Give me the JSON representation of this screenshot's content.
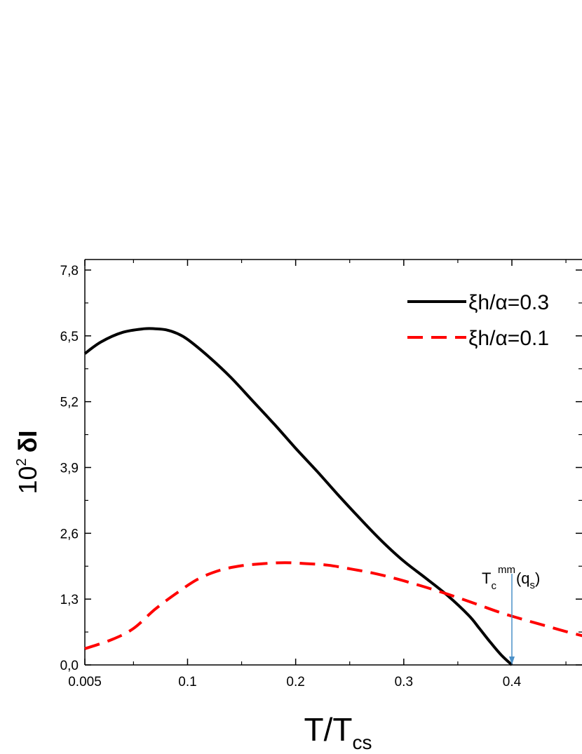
{
  "chart_data": {
    "type": "line",
    "xlabel": {
      "main": "T/T",
      "sub": "cs"
    },
    "ylabel": {
      "main": "10",
      "sup": "2",
      "symbol": "δI"
    },
    "xlim": [
      0.005,
      0.47
    ],
    "ylim": [
      0,
      7.8
    ],
    "x_ticks": [
      0.005,
      0.1,
      0.2,
      0.3,
      0.4
    ],
    "x_tick_labels": [
      "0.005",
      "0.1",
      "0.2",
      "0.3",
      "0.4"
    ],
    "y_ticks": [
      0,
      1.3,
      2.6,
      3.9,
      5.2,
      6.5,
      7.8
    ],
    "y_tick_labels": [
      "0,0",
      "1,3",
      "2,6",
      "3,9",
      "5,2",
      "6,5",
      "7,8"
    ],
    "grid": false,
    "legend_position": "top-right",
    "series": [
      {
        "name": "ξh/α=0.3",
        "color": "#000000",
        "dash": "solid",
        "x": [
          0.005,
          0.02,
          0.04,
          0.06,
          0.07,
          0.08,
          0.09,
          0.1,
          0.12,
          0.14,
          0.16,
          0.18,
          0.2,
          0.22,
          0.24,
          0.26,
          0.28,
          0.3,
          0.32,
          0.34,
          0.36,
          0.37,
          0.38,
          0.39,
          0.4
        ],
        "y": [
          6.15,
          6.38,
          6.57,
          6.64,
          6.64,
          6.62,
          6.55,
          6.43,
          6.08,
          5.68,
          5.22,
          4.76,
          4.28,
          3.82,
          3.34,
          2.88,
          2.44,
          2.05,
          1.72,
          1.38,
          0.98,
          0.72,
          0.45,
          0.2,
          0.0
        ]
      },
      {
        "name": "ξh/α=0.1",
        "color": "#ff0000",
        "dash": "dashed",
        "x": [
          0.005,
          0.03,
          0.05,
          0.07,
          0.09,
          0.11,
          0.13,
          0.15,
          0.17,
          0.19,
          0.21,
          0.23,
          0.25,
          0.27,
          0.29,
          0.31,
          0.33,
          0.35,
          0.37,
          0.39,
          0.41,
          0.43,
          0.45,
          0.47
        ],
        "y": [
          0.32,
          0.5,
          0.72,
          1.1,
          1.42,
          1.7,
          1.87,
          1.96,
          2.0,
          2.02,
          2.0,
          1.97,
          1.9,
          1.82,
          1.72,
          1.6,
          1.47,
          1.33,
          1.18,
          1.03,
          0.9,
          0.78,
          0.66,
          0.55
        ]
      }
    ],
    "annotation": {
      "main": "T",
      "sub": "c",
      "sup": "mm",
      "suffix": "(q",
      "suffix_sub": "s",
      "close": ")",
      "arrow_x": 0.4,
      "arrow_from_y": 1.8,
      "arrow_to_y": 0.0,
      "arrow_color": "#4a90c8"
    }
  }
}
